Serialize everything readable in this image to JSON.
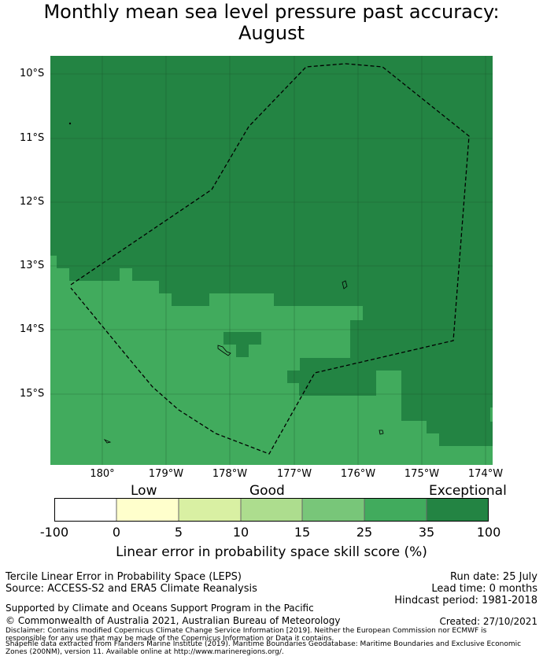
{
  "title_line1": "Monthly mean sea level pressure past accuracy:",
  "title_line2": "August",
  "lat_labels": [
    "10°S",
    "11°S",
    "12°S",
    "13°S",
    "14°S",
    "15°S"
  ],
  "lon_labels": [
    "180°",
    "179°W",
    "178°W",
    "177°W",
    "176°W",
    "175°W",
    "174°W"
  ],
  "colorbar": {
    "categories": [
      "Low",
      "Good",
      "Exceptional"
    ],
    "ticks": [
      "-100",
      "0",
      "5",
      "10",
      "15",
      "25",
      "35",
      "100"
    ],
    "colors": [
      "#ffffff",
      "#ffffcc",
      "#d9f0a3",
      "#addd8e",
      "#78c679",
      "#41ab5d",
      "#238443"
    ],
    "label": "Linear error in probability space skill score (%)"
  },
  "info": {
    "line1": "Tercile Linear Error in Probability Space (LEPS)",
    "line2": "Source: ACCESS-S2 and ERA5 Climate Reanalysis",
    "run_date": "Run date: 25 July",
    "lead_time": "Lead time: 0 months",
    "hindcast": "Hindcast period: 1981-2018",
    "supported": "Supported by Climate and Oceans Support Program in the Pacific",
    "copyright": "© Commonwealth of Australia 2021, Australian Bureau of Meteorology",
    "created": "Created: 27/10/2021",
    "disclaimer1": "Disclaimer: Contains modified Copernicus Climate Change Service Information [2019]. Neither the European Commission nor ECMWF is",
    "disclaimer2": "responsible for any use that may be made of the Copernicus Information or Data it contains.",
    "disclaimer3": "Shapefile data extracted from Flanders Marine Institute (2019). Maritime Boundaries Geodatabase: Maritime Boundaries and Exclusive Economic",
    "disclaimer4": "Zones (200NM), version 11. Available online at http://www.marineregions.org/."
  },
  "map_colors": {
    "exceptional": "#238443",
    "good_high": "#41ab5d"
  }
}
